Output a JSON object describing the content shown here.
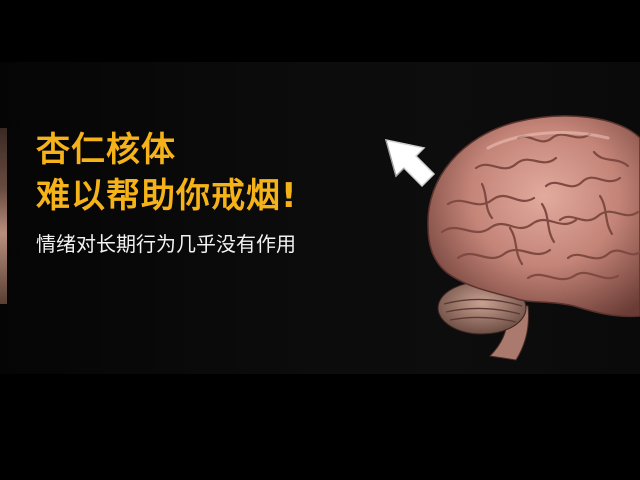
{
  "headline": {
    "line1": "杏仁核体",
    "line2": "难以帮助你戒烟!"
  },
  "subtitle": "情绪对长期行为几乎没有作用",
  "icons": {
    "arrow": "arrow-up-left-icon",
    "brain": "brain-illustration"
  },
  "colors": {
    "background": "#000000",
    "headline": "#f6b319",
    "subtitle": "#f2f2f2",
    "brain": "#c98b80"
  }
}
